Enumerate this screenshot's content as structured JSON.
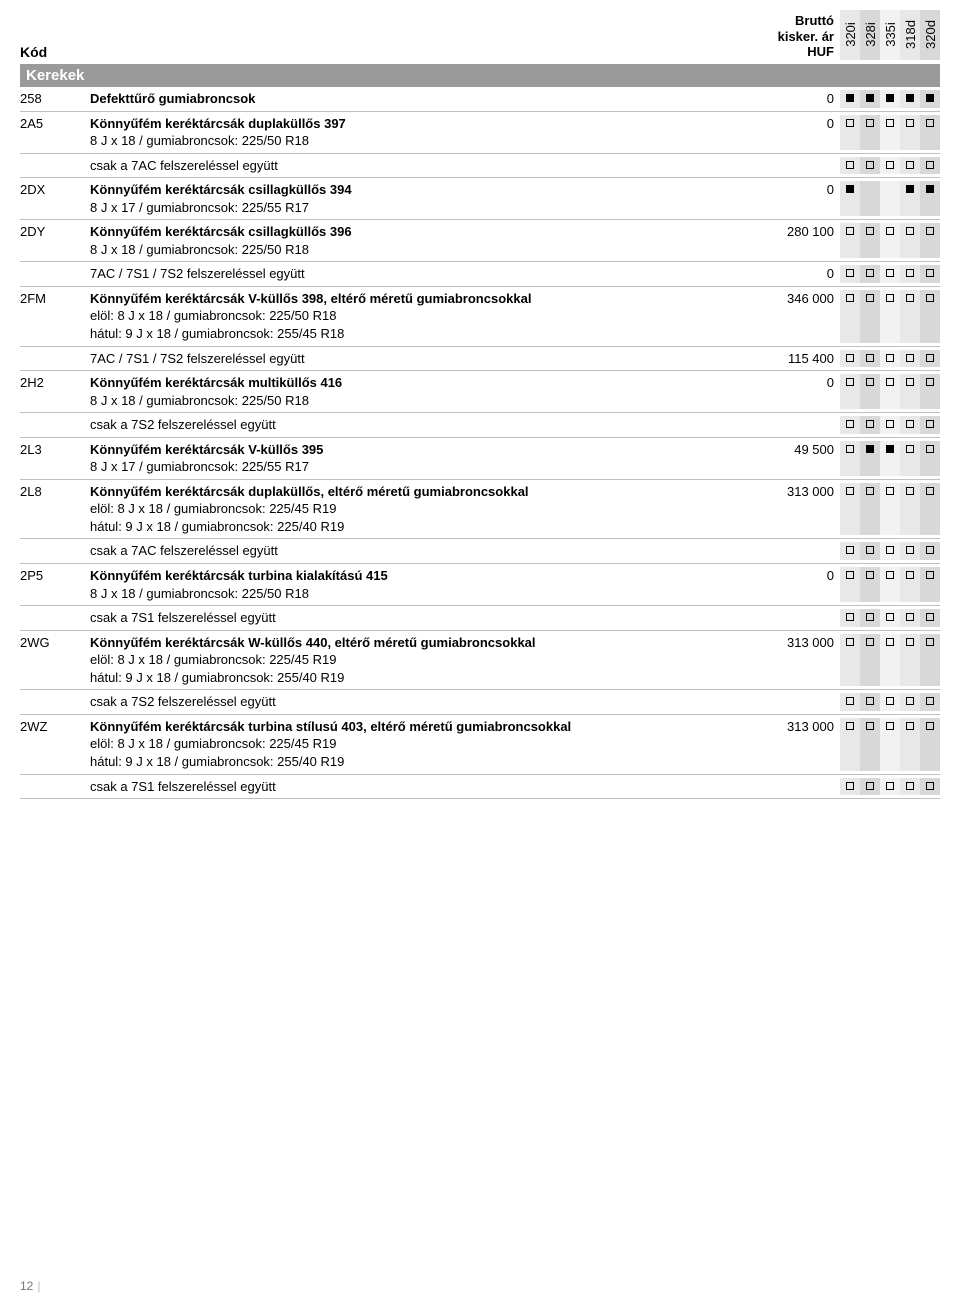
{
  "header": {
    "code_label": "Kód",
    "price_label_line1": "Bruttó",
    "price_label_line2": "kisker. ár",
    "price_label_line3": "HUF",
    "models": [
      "320i",
      "328i",
      "335i",
      "318d",
      "320d"
    ]
  },
  "section_title": "Kerekek",
  "model_bg_classes": [
    "model-bg-0",
    "model-bg-1",
    "model-bg-2",
    "model-bg-3",
    "model-bg-4"
  ],
  "rows": [
    {
      "code": "258",
      "title": "Defekttűrő gumiabroncsok",
      "sub": [],
      "price": "0",
      "markers": [
        "f",
        "f",
        "f",
        "f",
        "f"
      ]
    },
    {
      "code": "2A5",
      "title": "Könnyűfém keréktárcsák duplaküllős 397",
      "sub": [
        "8 J x 18 / gumiabroncsok: 225/50 R18"
      ],
      "price": "0",
      "markers": [
        "e",
        "e",
        "e",
        "e",
        "e"
      ]
    },
    {
      "code": "",
      "title": "",
      "sub": [
        "csak a 7AC felszereléssel együtt"
      ],
      "price": "",
      "markers": [
        "e",
        "e",
        "e",
        "e",
        "e"
      ]
    },
    {
      "code": "2DX",
      "title": "Könnyűfém keréktárcsák csillagküllős 394",
      "sub": [
        "8 J x 17 / gumiabroncsok: 225/55 R17"
      ],
      "price": "0",
      "markers": [
        "f",
        "",
        "",
        "f",
        "f"
      ]
    },
    {
      "code": "2DY",
      "title": "Könnyűfém keréktárcsák csillagküllős 396",
      "sub": [
        "8 J x 18 / gumiabroncsok: 225/50 R18"
      ],
      "price": "280 100",
      "markers": [
        "e",
        "e",
        "e",
        "e",
        "e"
      ]
    },
    {
      "code": "",
      "title": "",
      "sub": [
        "7AC / 7S1 / 7S2 felszereléssel együtt"
      ],
      "price": "0",
      "markers": [
        "e",
        "e",
        "e",
        "e",
        "e"
      ]
    },
    {
      "code": "2FM",
      "title": "Könnyűfém keréktárcsák V-küllős 398, eltérő méretű gumiabroncsokkal",
      "sub": [
        "elöl: 8 J x 18 / gumiabroncsok: 225/50 R18",
        "hátul: 9 J x 18 / gumiabroncsok: 255/45 R18"
      ],
      "price": "346 000",
      "markers": [
        "e",
        "e",
        "e",
        "e",
        "e"
      ]
    },
    {
      "code": "",
      "title": "",
      "sub": [
        "7AC / 7S1 / 7S2 felszereléssel együtt"
      ],
      "price": "115 400",
      "markers": [
        "e",
        "e",
        "e",
        "e",
        "e"
      ]
    },
    {
      "code": "2H2",
      "title": "Könnyűfém keréktárcsák multiküllős 416",
      "sub": [
        "8 J x 18 / gumiabroncsok: 225/50 R18"
      ],
      "price": "0",
      "markers": [
        "e",
        "e",
        "e",
        "e",
        "e"
      ]
    },
    {
      "code": "",
      "title": "",
      "sub": [
        "csak a 7S2 felszereléssel együtt"
      ],
      "price": "",
      "markers": [
        "e",
        "e",
        "e",
        "e",
        "e"
      ]
    },
    {
      "code": "2L3",
      "title": "Könnyűfém keréktárcsák V-küllős 395",
      "sub": [
        "8 J x 17 / gumiabroncsok: 225/55 R17"
      ],
      "price": "49 500",
      "markers": [
        "e",
        "f",
        "f",
        "e",
        "e"
      ]
    },
    {
      "code": "2L8",
      "title": "Könnyűfém keréktárcsák duplaküllős, eltérő méretű gumiabroncsokkal",
      "sub": [
        "elöl: 8 J x 18 / gumiabroncsok: 225/45 R19",
        "hátul: 9 J x 18 / gumiabroncsok: 225/40 R19"
      ],
      "price": "313 000",
      "markers": [
        "e",
        "e",
        "e",
        "e",
        "e"
      ]
    },
    {
      "code": "",
      "title": "",
      "sub": [
        "csak a 7AC felszereléssel együtt"
      ],
      "price": "",
      "markers": [
        "e",
        "e",
        "e",
        "e",
        "e"
      ]
    },
    {
      "code": "2P5",
      "title": "Könnyűfém keréktárcsák turbina kialakítású 415",
      "sub": [
        "8 J x 18 / gumiabroncsok: 225/50 R18"
      ],
      "price": "0",
      "markers": [
        "e",
        "e",
        "e",
        "e",
        "e"
      ]
    },
    {
      "code": "",
      "title": "",
      "sub": [
        "csak a 7S1 felszereléssel együtt"
      ],
      "price": "",
      "markers": [
        "e",
        "e",
        "e",
        "e",
        "e"
      ]
    },
    {
      "code": "2WG",
      "title": "Könnyűfém keréktárcsák W-küllős 440, eltérő méretű gumiabroncsokkal",
      "sub": [
        "elöl: 8 J x 18 / gumiabroncsok: 225/45 R19",
        "hátul: 9 J x 18 / gumiabroncsok: 255/40 R19"
      ],
      "price": "313 000",
      "markers": [
        "e",
        "e",
        "e",
        "e",
        "e"
      ]
    },
    {
      "code": "",
      "title": "",
      "sub": [
        "csak a 7S2 felszereléssel együtt"
      ],
      "price": "",
      "markers": [
        "e",
        "e",
        "e",
        "e",
        "e"
      ]
    },
    {
      "code": "2WZ",
      "title": "Könnyűfém keréktárcsák turbina stílusú 403, eltérő méretű gumiabroncsokkal",
      "sub": [
        "elöl: 8 J x 18 / gumiabroncsok: 225/45 R19",
        "hátul: 9 J x 18 / gumiabroncsok: 255/40 R19"
      ],
      "price": "313 000",
      "markers": [
        "e",
        "e",
        "e",
        "e",
        "e"
      ]
    },
    {
      "code": "",
      "title": "",
      "sub": [
        "csak a 7S1 felszereléssel együtt"
      ],
      "price": "",
      "markers": [
        "e",
        "e",
        "e",
        "e",
        "e"
      ]
    }
  ],
  "page_number": "12"
}
